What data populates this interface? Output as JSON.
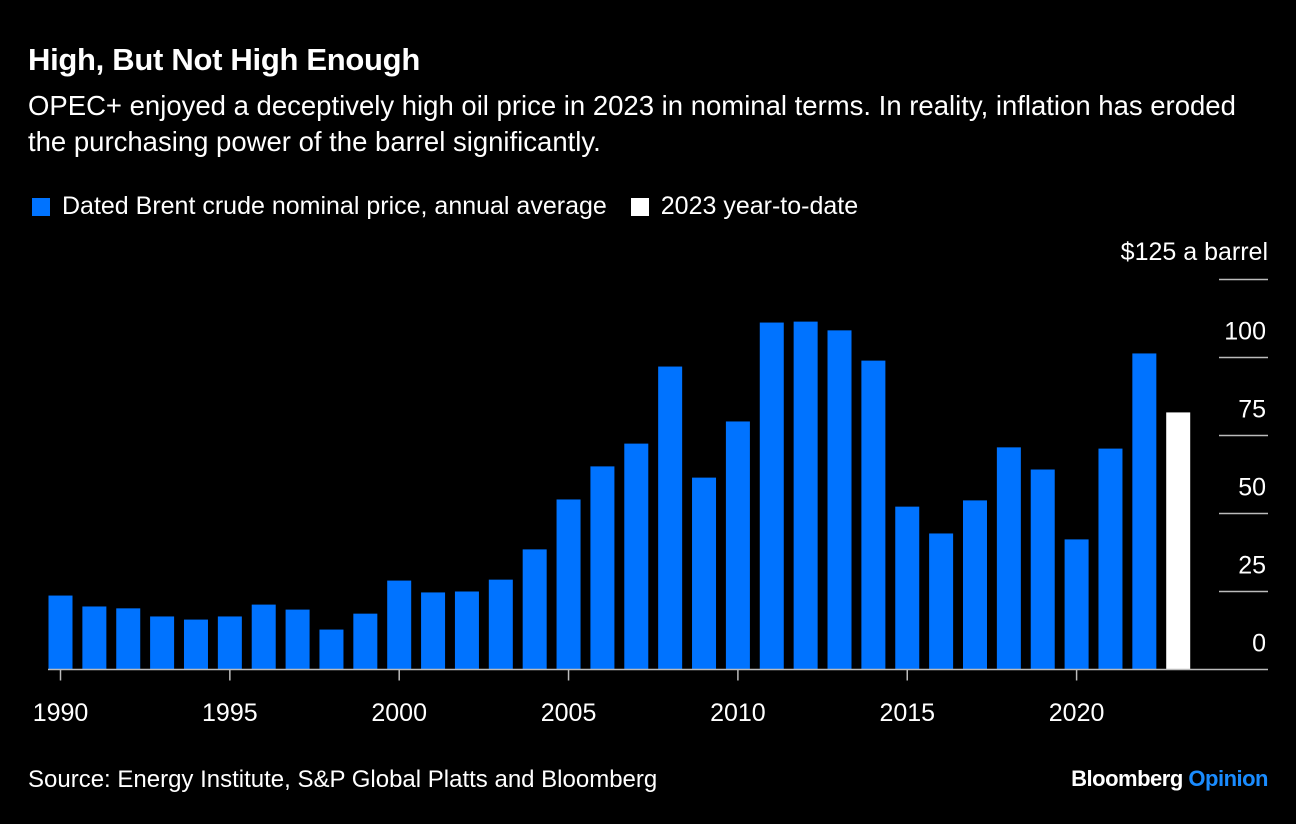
{
  "title": "High, But Not High Enough",
  "subtitle": "OPEC+ enjoyed a deceptively high oil price in 2023 in nominal terms. In reality, inflation has eroded the purchasing power of the barrel significantly.",
  "source": "Source: Energy Institute, S&P Global Platts and Bloomberg",
  "logo": {
    "brand": "Bloomberg",
    "section": "Opinion"
  },
  "colors": {
    "nominal": "#0073ff",
    "ytd": "#ffffff",
    "background": "#000000",
    "opinion": "#1a8cff"
  },
  "chart_data": {
    "type": "bar",
    "title": "High, But Not High Enough",
    "ylabel": "$125 a barrel",
    "ylim": [
      0,
      125
    ],
    "yticks": [
      0,
      25,
      50,
      75,
      100,
      125
    ],
    "ytick_labels": [
      "0",
      "25",
      "50",
      "75",
      "100",
      "$125 a barrel"
    ],
    "xtick_labels": [
      "1990",
      "1995",
      "2000",
      "2005",
      "2010",
      "2015",
      "2020"
    ],
    "legend": [
      {
        "name": "Dated Brent crude nominal price, annual average",
        "color": "#0073ff"
      },
      {
        "name": "2023 year-to-date",
        "color": "#ffffff"
      }
    ],
    "legend_placement": "top-left",
    "grid": "right-side short horizontal lines",
    "categories": [
      1990,
      1991,
      1992,
      1993,
      1994,
      1995,
      1996,
      1997,
      1998,
      1999,
      2000,
      2001,
      2002,
      2003,
      2004,
      2005,
      2006,
      2007,
      2008,
      2009,
      2010,
      2011,
      2012,
      2013,
      2014,
      2015,
      2016,
      2017,
      2018,
      2019,
      2020,
      2021,
      2022,
      2023
    ],
    "values": [
      23.7,
      20.2,
      19.6,
      17.0,
      16.0,
      17.0,
      20.8,
      19.2,
      12.8,
      17.9,
      28.5,
      24.7,
      25.0,
      28.8,
      38.5,
      54.5,
      65.1,
      72.4,
      97.1,
      61.5,
      79.5,
      111.2,
      111.5,
      108.7,
      99.0,
      52.2,
      43.6,
      54.2,
      71.2,
      64.1,
      41.7,
      70.8,
      101.3,
      82.4
    ],
    "series_of_each": [
      "nominal",
      "nominal",
      "nominal",
      "nominal",
      "nominal",
      "nominal",
      "nominal",
      "nominal",
      "nominal",
      "nominal",
      "nominal",
      "nominal",
      "nominal",
      "nominal",
      "nominal",
      "nominal",
      "nominal",
      "nominal",
      "nominal",
      "nominal",
      "nominal",
      "nominal",
      "nominal",
      "nominal",
      "nominal",
      "nominal",
      "nominal",
      "nominal",
      "nominal",
      "nominal",
      "nominal",
      "nominal",
      "nominal",
      "ytd"
    ]
  }
}
